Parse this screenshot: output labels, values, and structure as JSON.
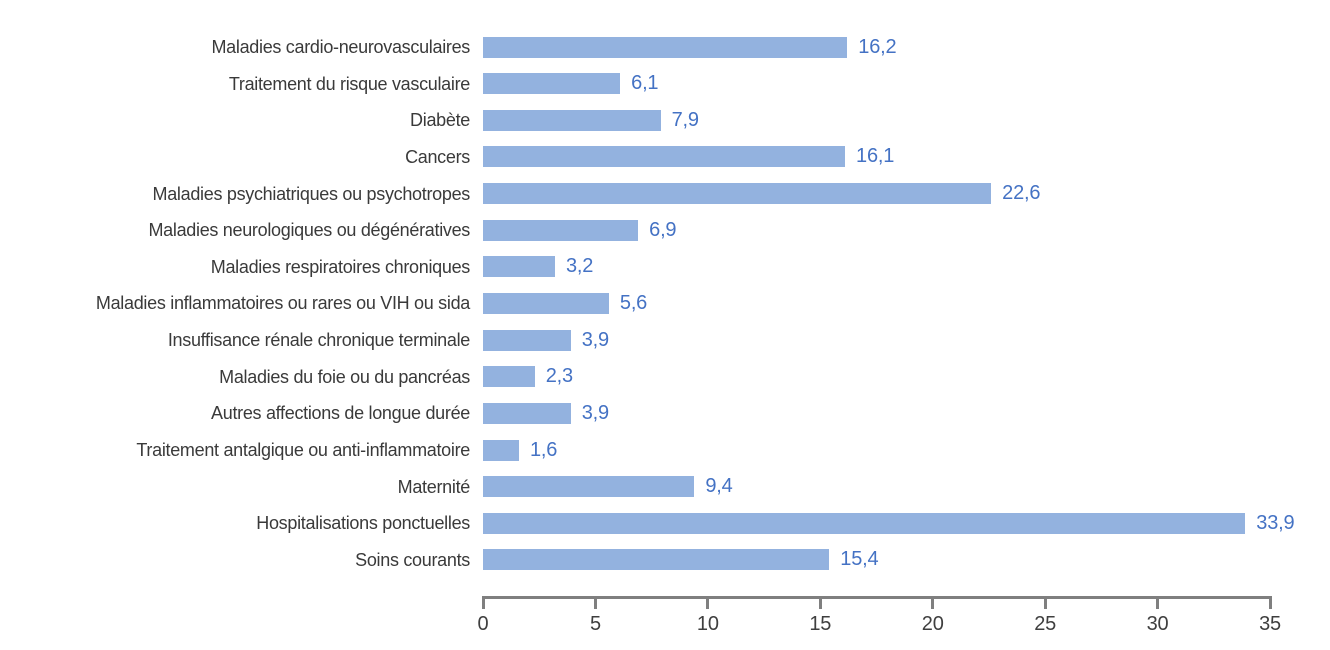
{
  "chart_data": {
    "type": "bar",
    "orientation": "horizontal",
    "categories": [
      "Maladies cardio-neurovasculaires",
      "Traitement du risque vasculaire",
      "Diabète",
      "Cancers",
      "Maladies psychiatriques ou psychotropes",
      "Maladies neurologiques ou dégénératives",
      "Maladies respiratoires chroniques",
      "Maladies inflammatoires ou rares ou VIH ou sida",
      "Insuffisance rénale chronique terminale",
      "Maladies du foie ou du pancréas",
      "Autres affections de longue durée",
      "Traitement antalgique ou anti-inflammatoire",
      "Maternité",
      "Hospitalisations ponctuelles",
      "Soins courants"
    ],
    "values": [
      16.2,
      6.1,
      7.9,
      16.1,
      22.6,
      6.9,
      3.2,
      5.6,
      3.9,
      2.3,
      3.9,
      1.6,
      9.4,
      33.9,
      15.4
    ],
    "value_labels": [
      "16,2",
      "6,1",
      "7,9",
      "16,1",
      "22,6",
      "6,9",
      "3,2",
      "5,6",
      "3,9",
      "2,3",
      "3,9",
      "1,6",
      "9,4",
      "33,9",
      "15,4"
    ],
    "x_ticks": [
      0,
      5,
      10,
      15,
      20,
      25,
      30,
      35
    ],
    "x_tick_labels": [
      "0",
      "5",
      "10",
      "15",
      "20",
      "25",
      "30",
      "35"
    ],
    "xlim": [
      0,
      35
    ],
    "grid": false,
    "legend": null,
    "bar_color": "#93B2DF",
    "value_label_color": "#4472C4",
    "axis_color": "#7F7F7F",
    "category_label_color": "#3A3A3A",
    "tick_label_color": "#3F3F3F"
  }
}
